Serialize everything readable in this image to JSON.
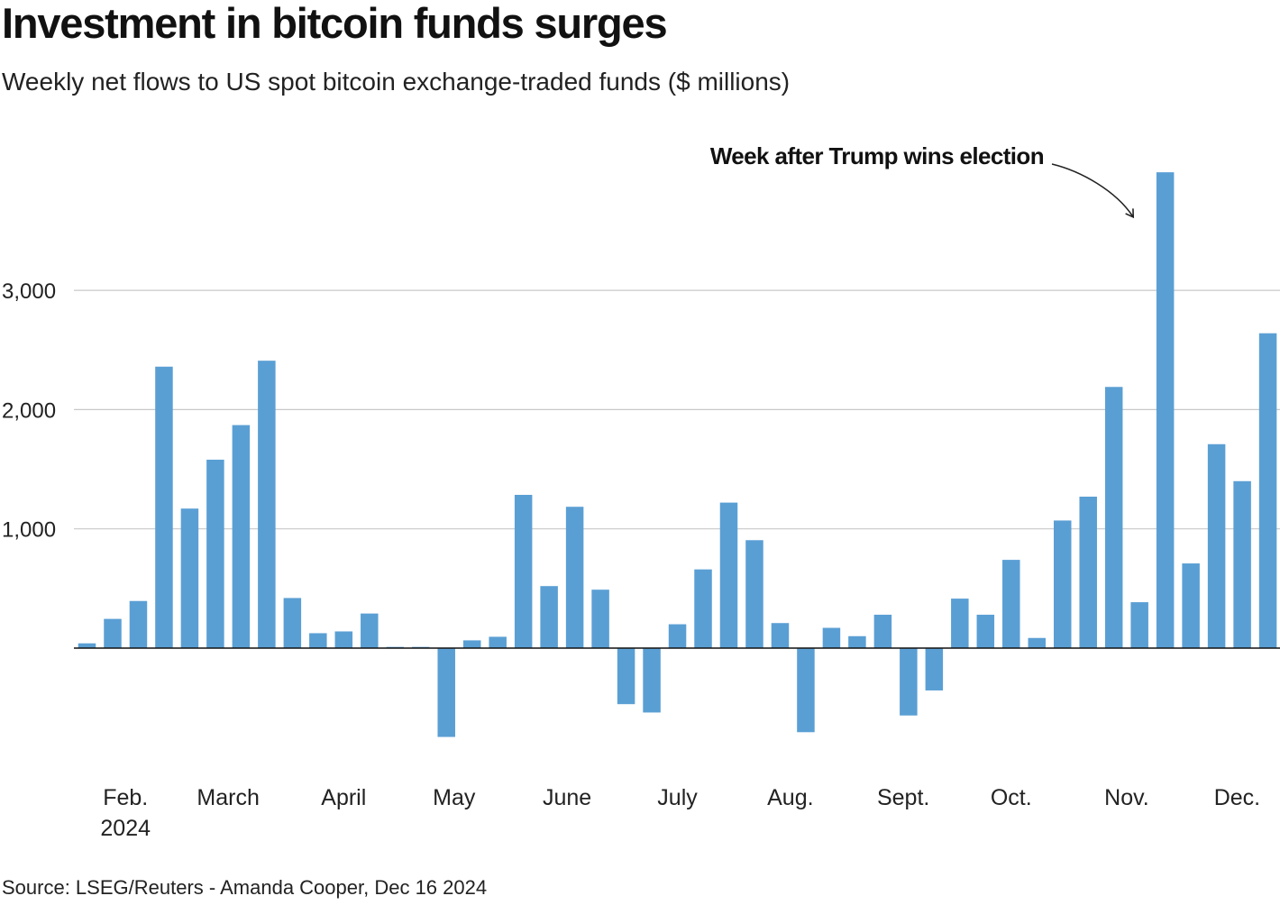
{
  "chart_data": {
    "type": "bar",
    "title": "Investment in bitcoin funds surges",
    "subtitle": "Weekly net flows to US spot bitcoin exchange-traded funds ($ millions)",
    "source": "Source: LSEG/Reuters - Amanda Cooper, Dec 16 2024",
    "xlabel": "",
    "ylabel": "",
    "ylim": [
      -1000,
      4000
    ],
    "yticks": [
      1000,
      2000,
      3000
    ],
    "ytick_labels": [
      "1,000",
      "2,000",
      "3,000"
    ],
    "grid": true,
    "bar_color": "#5a9fd4",
    "month_ticks": [
      {
        "label": "Feb.",
        "sublabel": "2024",
        "week": 1.5
      },
      {
        "label": "March",
        "week": 5.5
      },
      {
        "label": "April",
        "week": 10
      },
      {
        "label": "May",
        "week": 14.3
      },
      {
        "label": "June",
        "week": 18.7
      },
      {
        "label": "July",
        "week": 23
      },
      {
        "label": "Aug.",
        "week": 27.4
      },
      {
        "label": "Sept.",
        "week": 31.8
      },
      {
        "label": "Oct.",
        "week": 36
      },
      {
        "label": "Nov.",
        "week": 40.5
      },
      {
        "label": "Dec.",
        "week": 44.8
      }
    ],
    "values": [
      40,
      245,
      395,
      2360,
      1170,
      1580,
      1870,
      2410,
      420,
      125,
      140,
      290,
      10,
      10,
      -745,
      65,
      95,
      1285,
      520,
      1185,
      490,
      -470,
      -540,
      200,
      660,
      1220,
      905,
      210,
      -705,
      170,
      100,
      280,
      -565,
      -355,
      415,
      280,
      740,
      85,
      1070,
      1270,
      2190,
      385,
      3990,
      710,
      1710,
      1400,
      2640
    ],
    "annotation": {
      "text": "Week after Trump wins election",
      "week_index": 42
    }
  }
}
